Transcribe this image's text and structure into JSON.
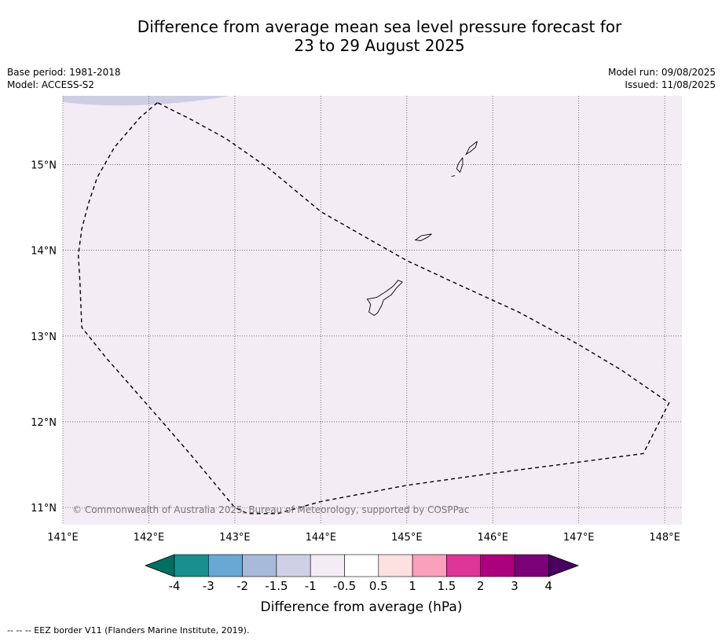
{
  "title": {
    "line1": "Difference from average mean sea level pressure forecast for",
    "line2": "23 to 29 August 2025"
  },
  "info_left": {
    "base_period": "Base period: 1981-2018",
    "model": "Model: ACCESS-S2"
  },
  "info_right": {
    "model_run": "Model run: 09/08/2025",
    "issued": "Issued: 11/08/2025"
  },
  "map": {
    "lon_range": [
      141,
      148.2
    ],
    "lat_range": [
      10.8,
      15.8
    ],
    "lon_ticks": [
      141,
      142,
      143,
      144,
      145,
      146,
      147,
      148
    ],
    "lat_ticks": [
      11,
      12,
      13,
      14,
      15
    ],
    "lon_tick_labels": [
      "141°E",
      "142°E",
      "143°E",
      "144°E",
      "145°E",
      "146°E",
      "147°E",
      "148°E"
    ],
    "lat_tick_labels": [
      "11°N",
      "12°N",
      "13°N",
      "14°N",
      "15°N"
    ],
    "background_anomaly_range": [
      -1,
      -0.5
    ],
    "colors": {
      "fill": "#f3ecf5",
      "patch": "#cdcde3",
      "grid": "#555555"
    },
    "copyright": "© Commonwealth of Australia 2025, Bureau of Meteorology, supported by COSPPac",
    "eez_border": [
      [
        142.1,
        15.72
      ],
      [
        141.9,
        15.55
      ],
      [
        141.6,
        15.2
      ],
      [
        141.4,
        14.85
      ],
      [
        141.3,
        14.55
      ],
      [
        141.22,
        14.25
      ],
      [
        141.18,
        13.95
      ],
      [
        141.2,
        13.6
      ],
      [
        141.22,
        13.1
      ],
      [
        141.5,
        12.75
      ],
      [
        141.85,
        12.35
      ],
      [
        142.2,
        11.95
      ],
      [
        142.5,
        11.6
      ],
      [
        142.75,
        11.3
      ],
      [
        143.0,
        11.0
      ],
      [
        143.15,
        10.93
      ],
      [
        143.5,
        10.93
      ],
      [
        144.0,
        11.07
      ],
      [
        145.0,
        11.26
      ],
      [
        146.0,
        11.4
      ],
      [
        147.0,
        11.53
      ],
      [
        147.75,
        11.63
      ],
      [
        148.05,
        12.22
      ],
      [
        147.5,
        12.6
      ],
      [
        147.0,
        12.9
      ],
      [
        146.3,
        13.28
      ],
      [
        145.6,
        13.6
      ],
      [
        145.0,
        13.88
      ],
      [
        144.7,
        14.05
      ],
      [
        144.0,
        14.45
      ],
      [
        143.4,
        14.95
      ],
      [
        142.9,
        15.3
      ],
      [
        142.5,
        15.52
      ],
      [
        142.1,
        15.72
      ]
    ],
    "islands": [
      {
        "name": "Guam",
        "coords": [
          [
            144.95,
            13.63
          ],
          [
            144.88,
            13.56
          ],
          [
            144.82,
            13.48
          ],
          [
            144.73,
            13.42
          ],
          [
            144.71,
            13.36
          ],
          [
            144.66,
            13.27
          ],
          [
            144.62,
            13.24
          ],
          [
            144.56,
            13.28
          ],
          [
            144.58,
            13.37
          ],
          [
            144.54,
            13.43
          ],
          [
            144.65,
            13.45
          ],
          [
            144.76,
            13.52
          ],
          [
            144.84,
            13.58
          ],
          [
            144.9,
            13.65
          ],
          [
            144.95,
            13.63
          ]
        ]
      },
      {
        "name": "Rota",
        "coords": [
          [
            145.29,
            14.19
          ],
          [
            145.17,
            14.17
          ],
          [
            145.1,
            14.12
          ],
          [
            145.16,
            14.11
          ],
          [
            145.24,
            14.15
          ],
          [
            145.29,
            14.19
          ]
        ]
      },
      {
        "name": "Tinian",
        "coords": [
          [
            145.65,
            15.08
          ],
          [
            145.6,
            15.01
          ],
          [
            145.58,
            14.95
          ],
          [
            145.62,
            14.91
          ],
          [
            145.65,
            15.0
          ],
          [
            145.65,
            15.08
          ]
        ]
      },
      {
        "name": "Saipan",
        "coords": [
          [
            145.82,
            15.27
          ],
          [
            145.73,
            15.2
          ],
          [
            145.69,
            15.12
          ],
          [
            145.74,
            15.15
          ],
          [
            145.8,
            15.2
          ],
          [
            145.82,
            15.27
          ]
        ]
      },
      {
        "name": "Aguijan",
        "coords": [
          [
            145.52,
            14.86
          ],
          [
            145.56,
            14.87
          ]
        ]
      }
    ]
  },
  "colorbar": {
    "label": "Difference from average (hPa)",
    "tick_labels": [
      "-4",
      "-3",
      "-2",
      "-1.5",
      "-1",
      "-0.5",
      "0.5",
      "1",
      "1.5",
      "2",
      "3",
      "4"
    ],
    "below_color": "#006e60",
    "above_color": "#4a005e",
    "colors": [
      "#1a8f8f",
      "#6aa8d4",
      "#a7bad9",
      "#cfcfe6",
      "#f3ecf5",
      "#ffffff",
      "#fde0e0",
      "#f9a0bb",
      "#dd3498",
      "#ac007e",
      "#7a0177"
    ]
  },
  "footer": "--  --  -- EEZ border V11 (Flanders Marine Institute, 2019)."
}
